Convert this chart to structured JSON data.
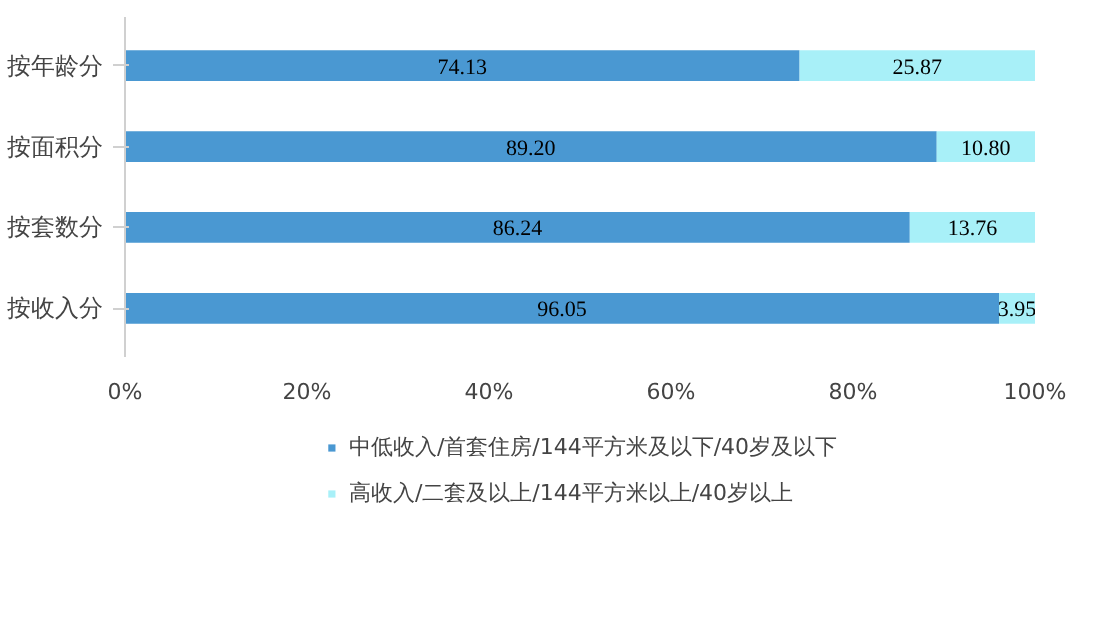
{
  "chart_data": {
    "type": "bar",
    "orientation": "horizontal",
    "stacked": true,
    "categories": [
      "按年龄分",
      "按面积分",
      "按套数分",
      "按收入分"
    ],
    "series": [
      {
        "name": "中低收入/首套住房/144平方米及以下/40岁及以下",
        "color": "#4a98d2",
        "values": [
          74.13,
          89.2,
          86.24,
          96.05
        ],
        "value_labels": [
          "74.13",
          "89.20",
          "86.24",
          "96.05"
        ]
      },
      {
        "name": "高收入/二套及以上/144平方米以上/40岁以上",
        "color": "#a8f0f8",
        "values": [
          25.87,
          10.8,
          13.76,
          3.95
        ],
        "value_labels": [
          "25.87",
          "10.80",
          "13.76",
          "3.95"
        ]
      }
    ],
    "xlim": [
      0,
      100
    ],
    "xticks": [
      {
        "value": 0,
        "label": "0%"
      },
      {
        "value": 20,
        "label": "20%"
      },
      {
        "value": 40,
        "label": "40%"
      },
      {
        "value": 60,
        "label": "60%"
      },
      {
        "value": 80,
        "label": "80%"
      },
      {
        "value": 100,
        "label": "100%"
      }
    ],
    "grid": false,
    "legend": "bottom"
  }
}
